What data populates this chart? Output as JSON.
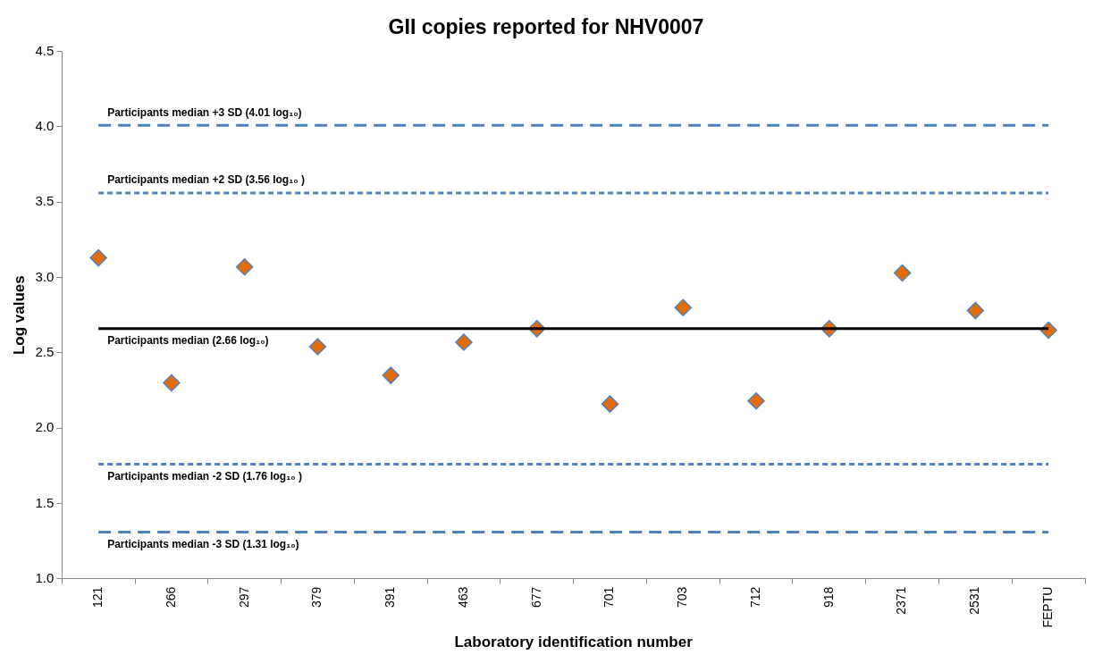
{
  "chart_data": {
    "type": "scatter",
    "title": "GII copies reported for NHV0007",
    "xlabel": "Laboratory identification number",
    "ylabel": "Log values",
    "categories": [
      "121",
      "266",
      "297",
      "379",
      "391",
      "463",
      "677",
      "701",
      "703",
      "712",
      "918",
      "2371",
      "2531",
      "FEPTU"
    ],
    "series": [
      {
        "color": "#e36c09",
        "marker": "diamond",
        "values": [
          3.13,
          2.3,
          3.07,
          2.54,
          2.35,
          2.57,
          2.66,
          2.16,
          2.8,
          2.18,
          2.66,
          3.03,
          2.78,
          2.65
        ]
      }
    ],
    "ylim": [
      1,
      4.5
    ],
    "yticks": [
      {
        "value": 1,
        "label": "1.0"
      },
      {
        "value": 1.5,
        "label": "1.5"
      },
      {
        "value": 2,
        "label": "2.0"
      },
      {
        "value": 2.5,
        "label": "2.5"
      },
      {
        "value": 3,
        "label": "3.0"
      },
      {
        "value": 3.5,
        "label": "3.5"
      },
      {
        "value": 4,
        "label": "4.0"
      },
      {
        "value": 4.5,
        "label": "4.5"
      }
    ],
    "grid": false,
    "legend": false,
    "ref_lines": [
      {
        "axis": "y",
        "value": 4.01,
        "label": "Participants median +3 SD (4.01 log₁₀)",
        "color": "#4f81bd",
        "line_style": "dashed"
      },
      {
        "axis": "y",
        "value": 3.56,
        "label": "Participants median +2 SD (3.56 log₁₀ )",
        "color": "#4f81bd",
        "line_style": "dotted"
      },
      {
        "axis": "y",
        "value": 2.66,
        "label": "Participants median (2.66 log₁₀)",
        "color": "#000000",
        "line_style": "solid"
      },
      {
        "axis": "y",
        "value": 1.76,
        "label": "Participants median -2 SD (1.76 log₁₀ )",
        "color": "#4f81bd",
        "line_style": "dotted"
      },
      {
        "axis": "y",
        "value": 1.31,
        "label": "Participants median -3 SD (1.31 log₁₀)",
        "color": "#4f81bd",
        "line_style": "dashed"
      }
    ]
  }
}
